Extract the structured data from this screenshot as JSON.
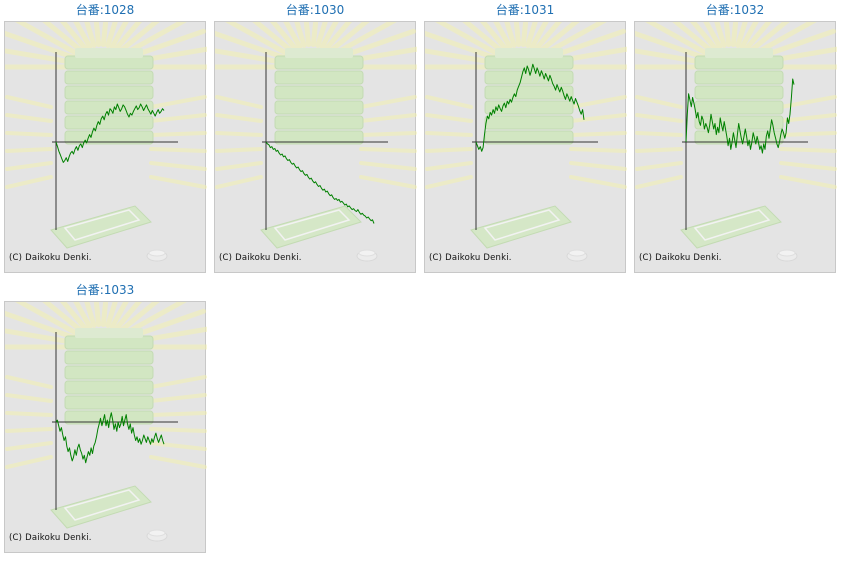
{
  "credit": "(C) Daikoku Denki.",
  "colors": {
    "line": "#008000",
    "axis": "#333333",
    "title": "#1f6fb2",
    "panel": "#e4e4e4"
  },
  "chart_data": [
    {
      "type": "line",
      "title": "台番:1028",
      "values": [
        0,
        -5,
        -10,
        -14,
        -18,
        -22,
        -20,
        -17,
        -21,
        -16,
        -12,
        -10,
        -13,
        -8,
        -5,
        -9,
        -4,
        -2,
        -6,
        -1,
        2,
        -1,
        4,
        8,
        5,
        11,
        15,
        12,
        18,
        22,
        19,
        25,
        28,
        24,
        30,
        33,
        29,
        36,
        34,
        31,
        38,
        35,
        41,
        37,
        33,
        36,
        40,
        38,
        34,
        30,
        27,
        31,
        29,
        33,
        36,
        39,
        35,
        37,
        41,
        38,
        34,
        37,
        40,
        36,
        33,
        30,
        34,
        31,
        28,
        32,
        35,
        31,
        33,
        36,
        34
      ]
    },
    {
      "type": "line",
      "title": "台番:1030",
      "values": [
        0,
        -2,
        -3,
        -6,
        -5,
        -8,
        -7,
        -10,
        -9,
        -12,
        -14,
        -13,
        -16,
        -15,
        -18,
        -20,
        -19,
        -22,
        -24,
        -23,
        -26,
        -28,
        -27,
        -30,
        -32,
        -31,
        -34,
        -36,
        -35,
        -38,
        -40,
        -39,
        -42,
        -44,
        -43,
        -46,
        -48,
        -47,
        -50,
        -52,
        -51,
        -54,
        -53,
        -56,
        -58,
        -57,
        -60,
        -62,
        -61,
        -63,
        -62,
        -65,
        -64,
        -66,
        -68,
        -67,
        -70,
        -69,
        -71,
        -73,
        -72,
        -74,
        -75,
        -73,
        -76,
        -78,
        -77,
        -79,
        -80,
        -82,
        -81,
        -83,
        -85,
        -84,
        -88
      ]
    },
    {
      "type": "line",
      "title": "台番:1031",
      "values": [
        0,
        -4,
        -8,
        -5,
        -10,
        -6,
        8,
        20,
        28,
        25,
        32,
        29,
        35,
        31,
        38,
        34,
        40,
        36,
        33,
        39,
        42,
        37,
        44,
        41,
        46,
        43,
        48,
        52,
        49,
        56,
        60,
        64,
        70,
        76,
        80,
        74,
        82,
        78,
        72,
        77,
        84,
        79,
        74,
        80,
        76,
        71,
        77,
        73,
        68,
        74,
        70,
        66,
        72,
        68,
        63,
        60,
        56,
        62,
        58,
        54,
        59,
        55,
        50,
        46,
        52,
        48,
        44,
        49,
        45,
        41,
        47,
        43,
        39,
        34,
        30,
        35,
        24
      ]
    },
    {
      "type": "line",
      "title": "台番:1032",
      "values": [
        0,
        30,
        52,
        45,
        38,
        48,
        42,
        35,
        26,
        32,
        22,
        18,
        28,
        24,
        14,
        20,
        16,
        10,
        18,
        30,
        22,
        14,
        20,
        8,
        16,
        10,
        26,
        18,
        12,
        22,
        14,
        6,
        -4,
        4,
        -8,
        0,
        10,
        2,
        -6,
        8,
        20,
        12,
        4,
        -2,
        6,
        14,
        6,
        -4,
        2,
        -8,
        0,
        10,
        4,
        -2,
        6,
        0,
        -8,
        -4,
        -12,
        -2,
        -8,
        6,
        12,
        4,
        14,
        24,
        18,
        10,
        4,
        -2,
        -6,
        0,
        8,
        14,
        10,
        4,
        10,
        26,
        20,
        30,
        48,
        68,
        62
      ]
    },
    {
      "type": "line",
      "title": "台番:1033",
      "values": [
        0,
        2,
        -4,
        -10,
        -6,
        -14,
        -20,
        -16,
        -26,
        -32,
        -28,
        -36,
        -42,
        -38,
        -30,
        -36,
        -28,
        -24,
        -30,
        -34,
        -40,
        -36,
        -44,
        -38,
        -32,
        -36,
        -28,
        -34,
        -26,
        -22,
        -16,
        -8,
        -2,
        4,
        -4,
        2,
        8,
        -4,
        2,
        -6,
        4,
        10,
        2,
        -8,
        -2,
        -10,
        0,
        -6,
        -2,
        6,
        -4,
        2,
        8,
        -2,
        -8,
        -2,
        -12,
        -6,
        -14,
        -20,
        -16,
        -22,
        -18,
        -24,
        -20,
        -14,
        -18,
        -22,
        -16,
        -20,
        -24,
        -18,
        -22,
        -16,
        -12,
        -18,
        -22,
        -18,
        -14,
        -20,
        -24
      ]
    }
  ]
}
